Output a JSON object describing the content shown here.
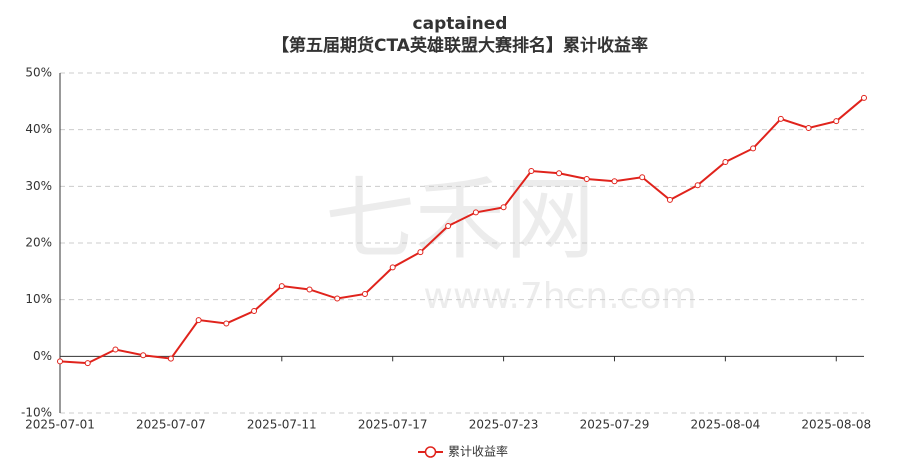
{
  "chart_data": {
    "type": "line",
    "title": "captained",
    "subtitle": "【第五届期货CTA英雄联盟大赛排名】累计收益率",
    "watermark": [
      "七禾网",
      "www.7hcn.com"
    ],
    "categories": [
      "2025-07-01",
      null,
      null,
      null,
      "2025-07-07",
      null,
      null,
      null,
      "2025-07-11",
      null,
      null,
      null,
      "2025-07-17",
      null,
      null,
      null,
      "2025-07-23",
      null,
      null,
      null,
      "2025-07-29",
      null,
      null,
      null,
      "2025-08-04",
      null,
      null,
      null,
      "2025-08-08",
      null
    ],
    "series": [
      {
        "name": "累计收益率",
        "color": "#e0231c",
        "values": [
          -0.9,
          -1.2,
          1.2,
          0.2,
          -0.4,
          6.4,
          5.8,
          8.0,
          12.4,
          11.8,
          10.2,
          11.0,
          15.7,
          18.4,
          23.0,
          25.4,
          26.3,
          32.7,
          32.3,
          31.3,
          30.9,
          31.6,
          27.6,
          30.2,
          34.3,
          36.7,
          41.9,
          40.3,
          41.5,
          45.6
        ]
      }
    ],
    "ylim": [
      -10,
      50
    ],
    "yticks": [
      {
        "value": -10,
        "label": "-10%"
      },
      {
        "value": 0,
        "label": "0%"
      },
      {
        "value": 10,
        "label": "10%"
      },
      {
        "value": 20,
        "label": "20%"
      },
      {
        "value": 30,
        "label": "30%"
      },
      {
        "value": 40,
        "label": "40%"
      },
      {
        "value": 50,
        "label": "50%"
      }
    ],
    "grid": true,
    "legend": "bottom"
  }
}
